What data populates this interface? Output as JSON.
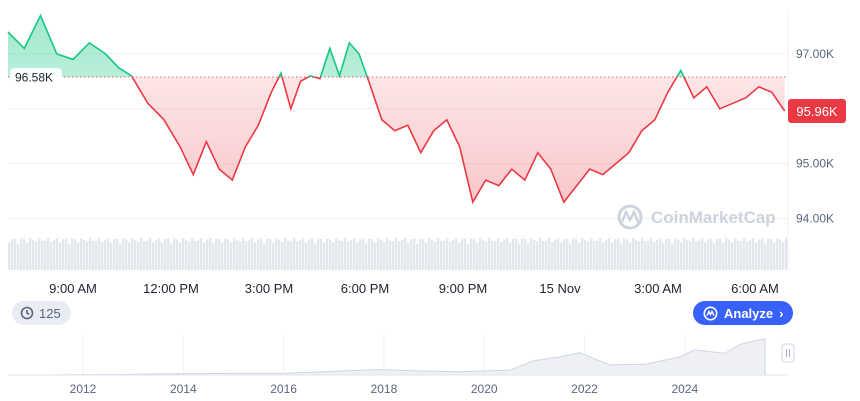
{
  "chart_data": {
    "type": "area",
    "baseline_label": "96.58K",
    "current_label": "95.96K",
    "baseline_value": 96580,
    "current_value": 95960,
    "ylim": [
      93700,
      97800
    ],
    "y_ticks": [
      {
        "value": 97000,
        "label": "97.00K"
      },
      {
        "value": 95000,
        "label": "95.00K"
      },
      {
        "value": 94000,
        "label": "94.00K"
      }
    ],
    "x_ticks": [
      "9:00 AM",
      "12:00 PM",
      "3:00 PM",
      "6:00 PM",
      "9:00 PM",
      "15 Nov",
      "3:00 AM",
      "6:00 AM"
    ],
    "watermark": "CoinMarketCap",
    "colors": {
      "up": "#16c784",
      "down": "#ea3943",
      "accent": "#3861fb"
    },
    "price_series": [
      [
        0,
        97400
      ],
      [
        0.5,
        97100
      ],
      [
        1,
        97700
      ],
      [
        1.5,
        97000
      ],
      [
        2,
        96900
      ],
      [
        2.5,
        97200
      ],
      [
        3,
        97000
      ],
      [
        3.4,
        96750
      ],
      [
        3.8,
        96600
      ],
      [
        4.3,
        96100
      ],
      [
        4.8,
        95800
      ],
      [
        5.3,
        95300
      ],
      [
        5.7,
        94800
      ],
      [
        6.1,
        95400
      ],
      [
        6.5,
        94900
      ],
      [
        6.9,
        94700
      ],
      [
        7.3,
        95300
      ],
      [
        7.7,
        95700
      ],
      [
        8.1,
        96300
      ],
      [
        8.4,
        96650
      ],
      [
        8.7,
        96000
      ],
      [
        9.0,
        96500
      ],
      [
        9.3,
        96600
      ],
      [
        9.6,
        96550
      ],
      [
        9.9,
        97100
      ],
      [
        10.2,
        96600
      ],
      [
        10.5,
        97200
      ],
      [
        10.8,
        97000
      ],
      [
        11.1,
        96500
      ],
      [
        11.5,
        95800
      ],
      [
        11.9,
        95600
      ],
      [
        12.3,
        95700
      ],
      [
        12.7,
        95200
      ],
      [
        13.1,
        95600
      ],
      [
        13.5,
        95800
      ],
      [
        13.9,
        95300
      ],
      [
        14.3,
        94300
      ],
      [
        14.7,
        94700
      ],
      [
        15.1,
        94600
      ],
      [
        15.5,
        94900
      ],
      [
        15.9,
        94700
      ],
      [
        16.3,
        95200
      ],
      [
        16.7,
        94900
      ],
      [
        17.1,
        94300
      ],
      [
        17.5,
        94600
      ],
      [
        17.9,
        94900
      ],
      [
        18.3,
        94800
      ],
      [
        18.7,
        95000
      ],
      [
        19.1,
        95200
      ],
      [
        19.5,
        95600
      ],
      [
        19.9,
        95800
      ],
      [
        20.3,
        96300
      ],
      [
        20.7,
        96700
      ],
      [
        21.1,
        96200
      ],
      [
        21.5,
        96400
      ],
      [
        21.9,
        96000
      ],
      [
        22.3,
        96100
      ],
      [
        22.7,
        96200
      ],
      [
        23.1,
        96400
      ],
      [
        23.5,
        96300
      ],
      [
        23.9,
        95960
      ]
    ],
    "volume_pattern": "flat",
    "history_series": [
      [
        2011.0,
        0
      ],
      [
        2013.0,
        0.2
      ],
      [
        2014.0,
        0.4
      ],
      [
        2016.0,
        0.5
      ],
      [
        2017.9,
        1.5
      ],
      [
        2018.5,
        1.2
      ],
      [
        2019.5,
        0.9
      ],
      [
        2020.5,
        1.3
      ],
      [
        2021.0,
        4.0
      ],
      [
        2021.5,
        5.0
      ],
      [
        2021.9,
        6.2
      ],
      [
        2022.5,
        2.8
      ],
      [
        2023.2,
        3.0
      ],
      [
        2023.9,
        5.0
      ],
      [
        2024.2,
        7.0
      ],
      [
        2024.8,
        6.0
      ],
      [
        2025.1,
        8.5
      ],
      [
        2025.4,
        9.5
      ],
      [
        2025.6,
        10.0
      ]
    ],
    "history_years": [
      2012,
      2014,
      2016,
      2018,
      2020,
      2022,
      2024
    ]
  },
  "controls": {
    "history_count": "125",
    "analyze_label": "Analyze"
  }
}
